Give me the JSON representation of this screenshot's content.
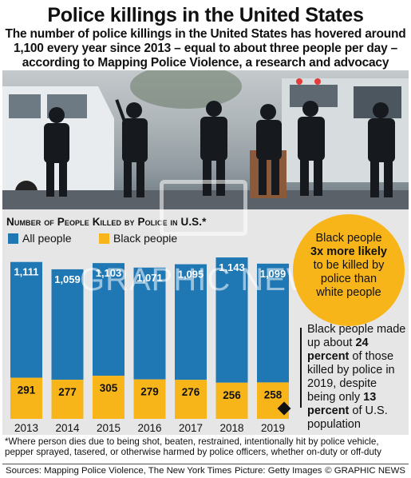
{
  "header": {
    "title": "Police killings in the United States",
    "subtitle": "The number of police killings in the United States has hovered around 1,100 every year since 2013 – equal to about three people per day – according to Mapping Police Violence, a research and advocacy group"
  },
  "chart_data": {
    "type": "bar",
    "title": "Number of People Killed by Police in U.S.*",
    "categories": [
      "2013",
      "2014",
      "2015",
      "2016",
      "2017",
      "2018",
      "2019"
    ],
    "series": [
      {
        "name": "All people",
        "values": [
          1111,
          1059,
          1103,
          1071,
          1095,
          1143,
          1099
        ],
        "labels": [
          "1,111",
          "1,059",
          "1,103",
          "1,071",
          "1,095",
          "1,143",
          "1,099"
        ],
        "color": "#1f78b4"
      },
      {
        "name": "Black people",
        "values": [
          291,
          277,
          305,
          279,
          276,
          256,
          258
        ],
        "labels": [
          "291",
          "277",
          "305",
          "279",
          "276",
          "256",
          "258"
        ],
        "color": "#f7b51a"
      }
    ],
    "ylim": [
      0,
      1200
    ],
    "legend_position": "top-left"
  },
  "callouts": {
    "bubble": {
      "line1": "Black people",
      "bold": "3x more likely",
      "line2": "to be killed by",
      "line3": "police than",
      "line4": "white people"
    },
    "side_note": {
      "p1": "Black people made up about",
      "b1": "24 percent",
      "p2": "of those killed by police in 2019, despite being only",
      "b2": "13 percent",
      "p3": "of U.S. population"
    }
  },
  "footnote": "*Where person dies due to being shot, beaten, restrained, intentionally hit by police vehicle, pepper sprayed, tasered, or otherwise harmed by police officers, whether on-duty or off-duty",
  "footer": {
    "sources": "Sources: Mapping Police Violence, The New York Times",
    "picture": "Picture: Getty Images",
    "copyright": "© GRAPHIC NEWS"
  },
  "watermark": "GRAPHIC NEWS",
  "colors": {
    "all_people": "#1f78b4",
    "black_people": "#f7b51a",
    "chart_bg": "#e6e6e6"
  }
}
